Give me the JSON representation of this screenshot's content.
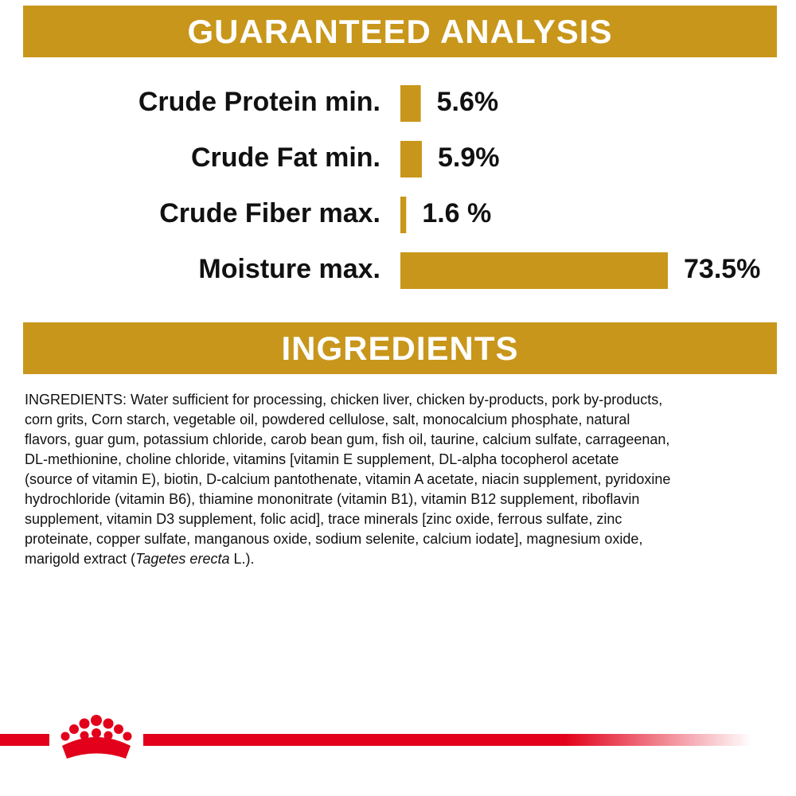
{
  "header": {
    "title": "GUARANTEED ANALYSIS"
  },
  "chart_data": {
    "type": "bar",
    "categories": [
      "Crude Protein min.",
      "Crude Fat min.",
      "Crude Fiber max.",
      "Moisture max."
    ],
    "values": [
      5.6,
      5.9,
      1.6,
      73.5
    ],
    "value_labels": [
      "5.6%",
      "5.9%",
      "1.6 %",
      "73.5%"
    ],
    "color": "#c8961a"
  },
  "ingredients": {
    "title": "INGREDIENTS",
    "lines": [
      "INGREDIENTS: Water sufficient for processing, chicken liver, chicken by-products, pork by-products,",
      "corn grits, Corn starch, vegetable oil, powdered cellulose, salt, monocalcium phosphate, natural",
      "flavors, guar gum, potassium chloride, carob bean gum, fish oil, taurine, calcium sulfate, carrageenan,",
      "DL-methionine, choline chloride, vitamins [vitamin E supplement, DL-alpha tocopherol acetate",
      "(source of vitamin E), biotin, D-calcium pantothenate, vitamin A acetate, niacin supplement, pyridoxine",
      "hydrochloride (vitamin B6), thiamine mononitrate (vitamin B1), vitamin B12 supplement, riboflavin",
      "supplement, vitamin D3 supplement, folic acid], trace minerals [zinc oxide, ferrous sulfate, zinc",
      "proteinate, copper sulfate, manganous oxide, sodium selenite, calcium iodate], magnesium oxide,"
    ],
    "last_line": {
      "before": "marigold extract (",
      "italic": "Tagetes erecta",
      "after": " L.)."
    }
  }
}
